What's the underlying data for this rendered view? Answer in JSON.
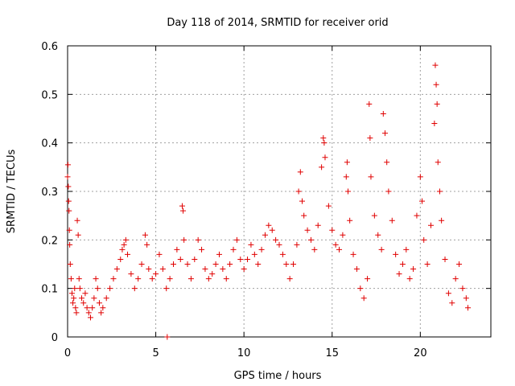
{
  "chart_data": {
    "type": "scatter",
    "title": "Day 118 of 2014, SRMTID for receiver orid",
    "xlabel": "GPS time / hours",
    "ylabel": "SRMTID / TECUs",
    "xlim": [
      0,
      24
    ],
    "ylim": [
      0,
      0.6
    ],
    "xticks": [
      0,
      5,
      10,
      15,
      20
    ],
    "xtick_labels": [
      "0",
      "5",
      "10",
      "15",
      "20"
    ],
    "yticks": [
      0,
      0.1,
      0.2,
      0.3,
      0.4,
      0.5,
      0.6
    ],
    "ytick_labels": [
      "0",
      "0.1",
      "0.2",
      "0.3",
      "0.4",
      "0.5",
      "0.6"
    ],
    "grid": true,
    "marker": "+",
    "series": [
      {
        "name": "SRMTID",
        "color": "#e00000",
        "points": [
          [
            0.0,
            0.33
          ],
          [
            0.02,
            0.355
          ],
          [
            0.04,
            0.31
          ],
          [
            0.06,
            0.28
          ],
          [
            0.08,
            0.26
          ],
          [
            0.1,
            0.22
          ],
          [
            0.12,
            0.19
          ],
          [
            0.15,
            0.15
          ],
          [
            0.2,
            0.12
          ],
          [
            0.25,
            0.09
          ],
          [
            0.3,
            0.07
          ],
          [
            0.35,
            0.08
          ],
          [
            0.4,
            0.1
          ],
          [
            0.45,
            0.06
          ],
          [
            0.5,
            0.05
          ],
          [
            0.55,
            0.24
          ],
          [
            0.6,
            0.21
          ],
          [
            0.65,
            0.12
          ],
          [
            0.7,
            0.1
          ],
          [
            0.8,
            0.08
          ],
          [
            0.9,
            0.07
          ],
          [
            1.0,
            0.09
          ],
          [
            1.1,
            0.06
          ],
          [
            1.2,
            0.05
          ],
          [
            1.3,
            0.04
          ],
          [
            1.4,
            0.06
          ],
          [
            1.5,
            0.08
          ],
          [
            1.6,
            0.12
          ],
          [
            1.7,
            0.1
          ],
          [
            1.8,
            0.07
          ],
          [
            1.9,
            0.05
          ],
          [
            2.0,
            0.06
          ],
          [
            2.2,
            0.08
          ],
          [
            2.4,
            0.1
          ],
          [
            2.6,
            0.12
          ],
          [
            2.8,
            0.14
          ],
          [
            3.0,
            0.16
          ],
          [
            3.1,
            0.18
          ],
          [
            3.2,
            0.19
          ],
          [
            3.3,
            0.2
          ],
          [
            3.4,
            0.17
          ],
          [
            3.6,
            0.13
          ],
          [
            3.8,
            0.1
          ],
          [
            4.0,
            0.12
          ],
          [
            4.2,
            0.15
          ],
          [
            4.4,
            0.21
          ],
          [
            4.5,
            0.19
          ],
          [
            4.6,
            0.14
          ],
          [
            4.8,
            0.12
          ],
          [
            5.0,
            0.13
          ],
          [
            5.2,
            0.17
          ],
          [
            5.4,
            0.14
          ],
          [
            5.6,
            0.1
          ],
          [
            5.65,
            0.0
          ],
          [
            5.8,
            0.12
          ],
          [
            6.0,
            0.15
          ],
          [
            6.2,
            0.18
          ],
          [
            6.4,
            0.16
          ],
          [
            6.5,
            0.27
          ],
          [
            6.55,
            0.26
          ],
          [
            6.6,
            0.2
          ],
          [
            6.8,
            0.15
          ],
          [
            7.0,
            0.12
          ],
          [
            7.2,
            0.16
          ],
          [
            7.4,
            0.2
          ],
          [
            7.6,
            0.18
          ],
          [
            7.8,
            0.14
          ],
          [
            8.0,
            0.12
          ],
          [
            8.2,
            0.13
          ],
          [
            8.4,
            0.15
          ],
          [
            8.6,
            0.17
          ],
          [
            8.8,
            0.14
          ],
          [
            9.0,
            0.12
          ],
          [
            9.2,
            0.15
          ],
          [
            9.4,
            0.18
          ],
          [
            9.6,
            0.2
          ],
          [
            9.8,
            0.16
          ],
          [
            10.0,
            0.14
          ],
          [
            10.2,
            0.16
          ],
          [
            10.4,
            0.19
          ],
          [
            10.6,
            0.17
          ],
          [
            10.8,
            0.15
          ],
          [
            11.0,
            0.18
          ],
          [
            11.2,
            0.21
          ],
          [
            11.4,
            0.23
          ],
          [
            11.6,
            0.22
          ],
          [
            11.8,
            0.2
          ],
          [
            12.0,
            0.19
          ],
          [
            12.2,
            0.17
          ],
          [
            12.4,
            0.15
          ],
          [
            12.6,
            0.12
          ],
          [
            12.8,
            0.15
          ],
          [
            13.0,
            0.19
          ],
          [
            13.1,
            0.3
          ],
          [
            13.2,
            0.34
          ],
          [
            13.3,
            0.28
          ],
          [
            13.4,
            0.25
          ],
          [
            13.6,
            0.22
          ],
          [
            13.8,
            0.2
          ],
          [
            14.0,
            0.18
          ],
          [
            14.2,
            0.23
          ],
          [
            14.4,
            0.35
          ],
          [
            14.5,
            0.41
          ],
          [
            14.55,
            0.4
          ],
          [
            14.6,
            0.37
          ],
          [
            14.8,
            0.27
          ],
          [
            15.0,
            0.22
          ],
          [
            15.2,
            0.19
          ],
          [
            15.4,
            0.18
          ],
          [
            15.6,
            0.21
          ],
          [
            15.8,
            0.33
          ],
          [
            15.85,
            0.36
          ],
          [
            15.9,
            0.3
          ],
          [
            16.0,
            0.24
          ],
          [
            16.2,
            0.17
          ],
          [
            16.4,
            0.14
          ],
          [
            16.6,
            0.1
          ],
          [
            16.8,
            0.08
          ],
          [
            17.0,
            0.12
          ],
          [
            17.1,
            0.48
          ],
          [
            17.15,
            0.41
          ],
          [
            17.2,
            0.33
          ],
          [
            17.4,
            0.25
          ],
          [
            17.6,
            0.21
          ],
          [
            17.8,
            0.18
          ],
          [
            17.9,
            0.46
          ],
          [
            18.0,
            0.42
          ],
          [
            18.1,
            0.36
          ],
          [
            18.2,
            0.3
          ],
          [
            18.4,
            0.24
          ],
          [
            18.6,
            0.17
          ],
          [
            18.8,
            0.13
          ],
          [
            19.0,
            0.15
          ],
          [
            19.2,
            0.18
          ],
          [
            19.4,
            0.12
          ],
          [
            19.6,
            0.14
          ],
          [
            19.8,
            0.25
          ],
          [
            20.0,
            0.33
          ],
          [
            20.1,
            0.28
          ],
          [
            20.2,
            0.2
          ],
          [
            20.4,
            0.15
          ],
          [
            20.6,
            0.23
          ],
          [
            20.8,
            0.44
          ],
          [
            20.85,
            0.56
          ],
          [
            20.9,
            0.52
          ],
          [
            20.95,
            0.48
          ],
          [
            21.0,
            0.36
          ],
          [
            21.1,
            0.3
          ],
          [
            21.2,
            0.24
          ],
          [
            21.4,
            0.16
          ],
          [
            21.6,
            0.09
          ],
          [
            21.8,
            0.07
          ],
          [
            22.0,
            0.12
          ],
          [
            22.2,
            0.15
          ],
          [
            22.4,
            0.1
          ],
          [
            22.6,
            0.08
          ],
          [
            22.7,
            0.06
          ]
        ]
      }
    ]
  }
}
